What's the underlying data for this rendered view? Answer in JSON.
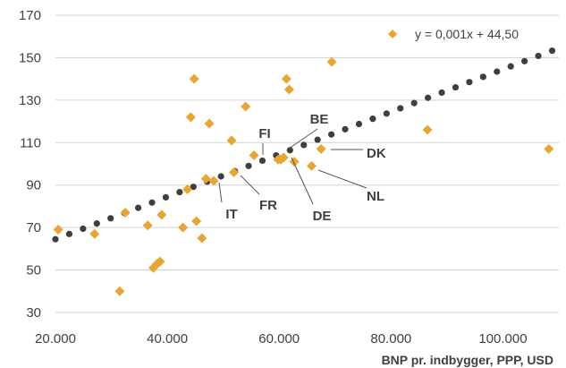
{
  "chart_data": {
    "type": "scatter",
    "title": "",
    "xlabel": "BNP pr. indbygger, PPP, USD",
    "ylabel": "",
    "xlim": [
      20000,
      110000
    ],
    "ylim": [
      30,
      170
    ],
    "x_ticks": [
      20000,
      40000,
      60000,
      80000,
      100000
    ],
    "x_tick_labels": [
      "20.000",
      "40.000",
      "60.000",
      "80.000",
      "100.000"
    ],
    "y_ticks": [
      30,
      50,
      70,
      90,
      110,
      130,
      150,
      170
    ],
    "y_tick_labels": [
      "30",
      "50",
      "70",
      "90",
      "110",
      "130",
      "150",
      "170"
    ],
    "grid": "horizontal",
    "legend_position": "top-right",
    "colors": {
      "points": "#E8A531",
      "trend": "#3F3F3F",
      "grid": "#D0D0D0",
      "text": "#404040"
    },
    "series": [
      {
        "name": "y = 0,001x + 44,50",
        "marker": "diamond",
        "points": [
          [
            20500,
            69
          ],
          [
            27000,
            67
          ],
          [
            31500,
            40
          ],
          [
            32500,
            77
          ],
          [
            36500,
            71
          ],
          [
            37500,
            51
          ],
          [
            38200,
            53
          ],
          [
            38700,
            54
          ],
          [
            39000,
            76
          ],
          [
            42800,
            70
          ],
          [
            43600,
            88
          ],
          [
            44200,
            122
          ],
          [
            44800,
            140
          ],
          [
            45200,
            73
          ],
          [
            46200,
            65
          ],
          [
            46900,
            93
          ],
          [
            47500,
            119
          ],
          [
            48300,
            92
          ],
          [
            51500,
            111
          ],
          [
            51900,
            96
          ],
          [
            54000,
            127
          ],
          [
            55500,
            104
          ],
          [
            59800,
            102
          ],
          [
            60300,
            102
          ],
          [
            60800,
            103
          ],
          [
            61300,
            140
          ],
          [
            61800,
            135
          ],
          [
            62700,
            101
          ],
          [
            65800,
            99
          ],
          [
            67500,
            107
          ],
          [
            69400,
            148
          ],
          [
            86500,
            116
          ],
          [
            108200,
            107
          ]
        ]
      }
    ],
    "trendline": {
      "slope": 0.001,
      "intercept": 44.5,
      "x_start": 20000,
      "x_end": 108800,
      "style": "dotted"
    },
    "annotations": [
      {
        "label": "BE",
        "x": 60800,
        "y": 103
      },
      {
        "label": "FI",
        "x": 55500,
        "y": 104
      },
      {
        "label": "DK",
        "x": 67500,
        "y": 107
      },
      {
        "label": "NL",
        "x": 65800,
        "y": 99
      },
      {
        "label": "DE",
        "x": 60800,
        "y": 103
      },
      {
        "label": "FR",
        "x": 51900,
        "y": 96
      },
      {
        "label": "IT",
        "x": 48300,
        "y": 92
      }
    ]
  }
}
